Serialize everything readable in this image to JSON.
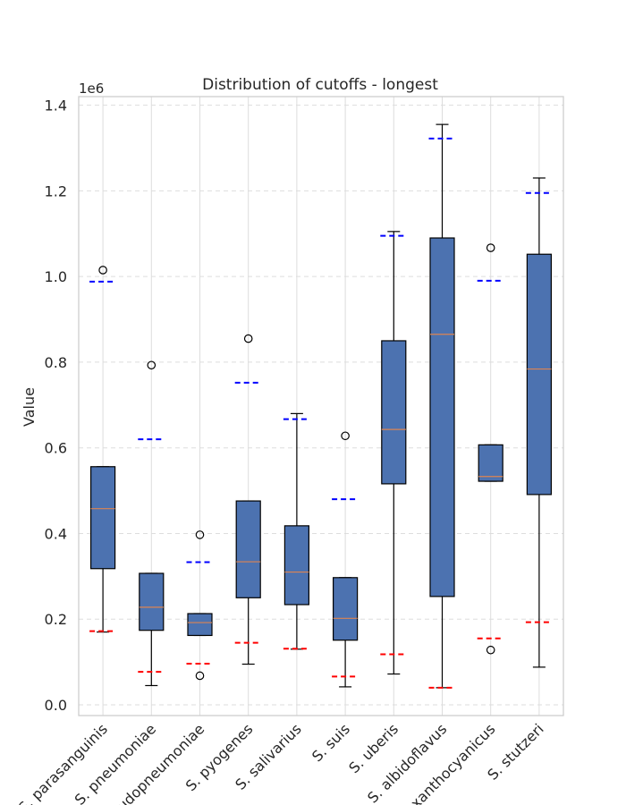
{
  "chart_data": {
    "type": "box",
    "title": "Distribution of cutoffs - longest",
    "ylabel": "Value",
    "xlabel": "",
    "offset_label": "1e6",
    "ylim": [
      -25000,
      1420000
    ],
    "yticks": [
      0.0,
      0.2,
      0.4,
      0.6,
      0.8,
      1.0,
      1.2,
      1.4
    ],
    "ytick_scale": 1000000,
    "grid": true,
    "colors": {
      "box_fill": "#4c72b0",
      "median": "#dd8452",
      "upper_marker": "#0000ff",
      "lower_marker": "#ff0000",
      "grid": "#dddddd",
      "axes_edge": "#cccccc"
    },
    "categories": [
      "S. parasanguinis",
      "S. pneumoniae",
      "S. pseudopneumoniae",
      "S. pyogenes",
      "S. salivarius",
      "S. suis",
      "S. uberis",
      "S. albidoflavus",
      "S. xanthocyanicus",
      "S. stutzeri"
    ],
    "boxes": [
      {
        "whislo": 170000,
        "q1": 318000,
        "med": 458000,
        "q3": 556000,
        "whishi": 556000,
        "fliers": [
          1015000
        ],
        "upper_marker": 988000,
        "lower_marker": 172000
      },
      {
        "whislo": 45000,
        "q1": 174000,
        "med": 228000,
        "q3": 307000,
        "whishi": 307000,
        "fliers": [
          793000
        ],
        "upper_marker": 620000,
        "lower_marker": 77000
      },
      {
        "whislo": 162000,
        "q1": 162000,
        "med": 192000,
        "q3": 213000,
        "whishi": 213000,
        "fliers": [
          397000,
          68000
        ],
        "upper_marker": 333000,
        "lower_marker": 96000
      },
      {
        "whislo": 95000,
        "q1": 250000,
        "med": 334000,
        "q3": 476000,
        "whishi": 476000,
        "fliers": [
          855000
        ],
        "upper_marker": 752000,
        "lower_marker": 145000
      },
      {
        "whislo": 130000,
        "q1": 234000,
        "med": 310000,
        "q3": 418000,
        "whishi": 680000,
        "fliers": [],
        "upper_marker": 667000,
        "lower_marker": 131000
      },
      {
        "whislo": 42000,
        "q1": 151000,
        "med": 202000,
        "q3": 297000,
        "whishi": 297000,
        "fliers": [
          628000
        ],
        "upper_marker": 480000,
        "lower_marker": 66000
      },
      {
        "whislo": 72000,
        "q1": 516000,
        "med": 643000,
        "q3": 850000,
        "whishi": 1105000,
        "fliers": [],
        "upper_marker": 1095000,
        "lower_marker": 118000
      },
      {
        "whislo": 40000,
        "q1": 253000,
        "med": 865000,
        "q3": 1090000,
        "whishi": 1355000,
        "fliers": [],
        "upper_marker": 1322000,
        "lower_marker": 40000
      },
      {
        "whislo": 522000,
        "q1": 522000,
        "med": 533000,
        "q3": 607000,
        "whishi": 607000,
        "fliers": [
          1067000,
          128000
        ],
        "upper_marker": 990000,
        "lower_marker": 155000
      },
      {
        "whislo": 88000,
        "q1": 491000,
        "med": 784000,
        "q3": 1052000,
        "whishi": 1230000,
        "fliers": [],
        "upper_marker": 1195000,
        "lower_marker": 193000
      }
    ]
  }
}
